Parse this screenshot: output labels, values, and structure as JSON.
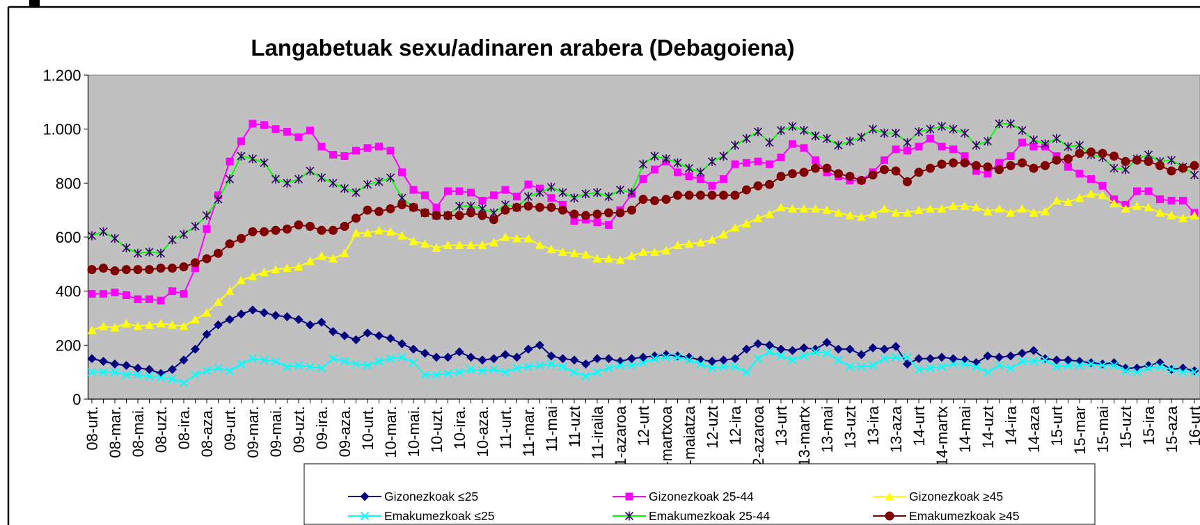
{
  "chart_data": {
    "type": "line",
    "title": "Langabetuak sexu/adinaren arabera (Debagoiena)",
    "categories": [
      "08-urt.",
      null,
      "08-mar.",
      null,
      "08-mai.",
      null,
      "08-uzt.",
      null,
      "08-ira.",
      null,
      "08-aza.",
      null,
      "09-urt.",
      null,
      "09-mar.",
      null,
      "09-mai.",
      null,
      "09-uzt.",
      null,
      "09-ira.",
      null,
      "09-aza.",
      null,
      "10-urt.",
      null,
      "10-mar.",
      null,
      "10-mai.",
      null,
      "10-uzt.",
      null,
      "10-ira.",
      null,
      "10-aza.",
      null,
      "11-urt.",
      null,
      "11-mar.",
      null,
      "11-mai",
      null,
      "11-uzt",
      null,
      "11-iraila",
      null,
      "11-azaroa",
      null,
      "12-urt",
      null,
      "12-martxoa",
      null,
      "12-maiatza",
      null,
      "12-uzt",
      null,
      "12-ira",
      null,
      "12-azaroa",
      null,
      "13-urt",
      null,
      "13-martx",
      null,
      "13-mai",
      null,
      "13-uzt",
      null,
      "13-ira",
      null,
      "13-aza",
      null,
      "14-urt",
      null,
      "14-martx",
      null,
      "14-mai",
      null,
      "14-uzt",
      null,
      "14-ira",
      null,
      "14-aza",
      null,
      "15-urt",
      null,
      "15-mar",
      null,
      "15-mai",
      null,
      "15-uzt",
      null,
      "15-ira",
      null,
      "15-aza",
      null,
      "16-urt"
    ],
    "series": [
      {
        "name": "Gizonezkoak ≤25",
        "color": "#000080",
        "marker": "diamond",
        "marker_color": "#000080",
        "values": [
          150,
          140,
          130,
          125,
          115,
          110,
          95,
          110,
          145,
          185,
          240,
          275,
          295,
          315,
          330,
          320,
          310,
          305,
          295,
          275,
          285,
          250,
          235,
          220,
          245,
          235,
          225,
          205,
          185,
          170,
          155,
          155,
          175,
          155,
          145,
          150,
          165,
          155,
          185,
          200,
          160,
          150,
          145,
          130,
          150,
          150,
          140,
          150,
          155,
          160,
          165,
          160,
          155,
          145,
          140,
          145,
          150,
          185,
          205,
          200,
          185,
          180,
          190,
          185,
          210,
          185,
          185,
          165,
          190,
          185,
          195,
          130,
          150,
          150,
          155,
          150,
          145,
          135,
          160,
          155,
          160,
          170,
          180,
          150,
          145,
          145,
          140,
          135,
          130,
          135,
          115,
          115,
          125,
          135,
          110,
          115,
          105
        ]
      },
      {
        "name": "Gizonezkoak 25-44",
        "color": "#ff00ff",
        "marker": "square",
        "marker_color": "#ff00ff",
        "values": [
          390,
          390,
          395,
          385,
          370,
          370,
          365,
          400,
          390,
          485,
          630,
          755,
          880,
          955,
          1020,
          1015,
          1000,
          990,
          970,
          995,
          935,
          905,
          900,
          920,
          930,
          935,
          920,
          840,
          775,
          755,
          710,
          770,
          770,
          765,
          735,
          755,
          775,
          750,
          795,
          780,
          745,
          720,
          660,
          665,
          655,
          645,
          700,
          760,
          815,
          850,
          880,
          840,
          825,
          815,
          790,
          815,
          870,
          875,
          880,
          870,
          895,
          945,
          930,
          885,
          840,
          825,
          810,
          810,
          840,
          885,
          925,
          920,
          935,
          965,
          935,
          925,
          900,
          845,
          835,
          875,
          900,
          950,
          935,
          935,
          900,
          860,
          835,
          815,
          790,
          740,
          720,
          770,
          770,
          740,
          735,
          735,
          690
        ]
      },
      {
        "name": "Gizonezkoak ≥45",
        "color": "#ffff00",
        "marker": "triangle",
        "marker_color": "#ffff00",
        "values": [
          255,
          270,
          265,
          280,
          270,
          275,
          280,
          275,
          270,
          295,
          320,
          360,
          400,
          440,
          455,
          470,
          480,
          485,
          490,
          510,
          530,
          520,
          540,
          615,
          615,
          625,
          620,
          605,
          585,
          575,
          560,
          570,
          570,
          570,
          570,
          580,
          600,
          595,
          595,
          570,
          555,
          545,
          540,
          535,
          520,
          520,
          515,
          530,
          545,
          545,
          550,
          570,
          575,
          580,
          590,
          610,
          635,
          650,
          670,
          685,
          710,
          705,
          705,
          705,
          700,
          690,
          680,
          675,
          685,
          705,
          690,
          690,
          700,
          705,
          705,
          715,
          715,
          710,
          695,
          705,
          690,
          705,
          690,
          695,
          735,
          730,
          745,
          760,
          755,
          725,
          705,
          715,
          710,
          690,
          680,
          670,
          680
        ]
      },
      {
        "name": "Emakumezkoak ≤25",
        "color": "#00ffff",
        "marker": "x",
        "marker_color": "#00ffff",
        "values": [
          100,
          100,
          100,
          90,
          90,
          85,
          80,
          75,
          60,
          90,
          105,
          115,
          105,
          130,
          150,
          145,
          140,
          120,
          125,
          120,
          115,
          150,
          140,
          130,
          125,
          140,
          150,
          155,
          135,
          90,
          90,
          95,
          100,
          110,
          105,
          110,
          100,
          115,
          120,
          125,
          130,
          120,
          100,
          85,
          100,
          115,
          125,
          125,
          135,
          150,
          155,
          155,
          145,
          130,
          115,
          120,
          120,
          100,
          150,
          175,
          160,
          145,
          160,
          175,
          170,
          145,
          120,
          120,
          125,
          150,
          155,
          155,
          110,
          115,
          120,
          130,
          130,
          120,
          100,
          125,
          115,
          140,
          140,
          145,
          120,
          125,
          125,
          130,
          125,
          125,
          105,
          100,
          115,
          120,
          110,
          100,
          100
        ]
      },
      {
        "name": "Emakumezkoak 25-44",
        "color": "#00ff00",
        "marker": "asterisk",
        "marker_color": "#330066",
        "values": [
          605,
          620,
          595,
          560,
          540,
          545,
          540,
          590,
          610,
          640,
          680,
          740,
          815,
          900,
          890,
          875,
          815,
          800,
          815,
          845,
          820,
          800,
          780,
          765,
          795,
          805,
          820,
          745,
          710,
          690,
          680,
          680,
          715,
          715,
          705,
          690,
          720,
          710,
          750,
          765,
          785,
          765,
          745,
          760,
          765,
          750,
          775,
          765,
          870,
          900,
          890,
          875,
          855,
          840,
          880,
          900,
          940,
          965,
          990,
          950,
          995,
          1010,
          995,
          975,
          965,
          940,
          955,
          970,
          1000,
          985,
          985,
          950,
          990,
          1000,
          1010,
          1000,
          985,
          940,
          955,
          1020,
          1020,
          995,
          960,
          945,
          965,
          935,
          940,
          905,
          895,
          855,
          850,
          890,
          905,
          880,
          885,
          860,
          830
        ]
      },
      {
        "name": "Emakumezkoak ≥45",
        "color": "#800000",
        "marker": "circle",
        "marker_color": "#800000",
        "values": [
          480,
          485,
          475,
          480,
          480,
          480,
          485,
          485,
          490,
          505,
          520,
          540,
          575,
          595,
          620,
          620,
          625,
          630,
          645,
          640,
          625,
          625,
          640,
          670,
          700,
          695,
          705,
          720,
          710,
          690,
          680,
          680,
          680,
          690,
          680,
          665,
          700,
          710,
          715,
          710,
          710,
          700,
          685,
          680,
          685,
          690,
          690,
          700,
          740,
          735,
          740,
          755,
          755,
          755,
          755,
          755,
          755,
          775,
          790,
          795,
          825,
          835,
          840,
          855,
          855,
          835,
          825,
          810,
          830,
          850,
          845,
          805,
          840,
          855,
          870,
          875,
          875,
          865,
          860,
          850,
          865,
          875,
          855,
          865,
          885,
          890,
          910,
          915,
          910,
          900,
          880,
          885,
          880,
          865,
          845,
          855,
          865
        ]
      }
    ],
    "ylim": [
      0,
      1200
    ],
    "yticks": [
      0,
      200,
      400,
      600,
      800,
      {
        "value": 1000,
        "label": "1.000"
      },
      {
        "value": 1200,
        "label": "1.200"
      }
    ],
    "grid": false,
    "plot_background": "#c0c0c0",
    "legend": "bottom"
  }
}
